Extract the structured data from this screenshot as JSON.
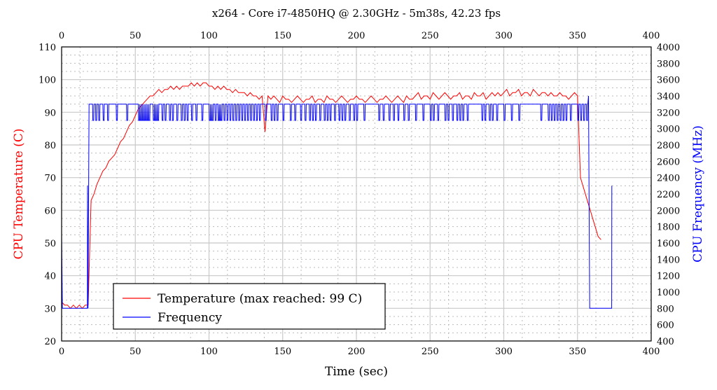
{
  "chart_data": {
    "type": "line",
    "title": "x264 - Core i7-4850HQ @ 2.30GHz - 5m38s, 42.23 fps",
    "xlabel": "Time (sec)",
    "ylabel_left": "CPU Temperature (C)",
    "ylabel_right": "CPU Frequency (MHz)",
    "xlim": [
      0,
      400
    ],
    "ylim_left": [
      20,
      110
    ],
    "ylim_right": [
      400,
      4000
    ],
    "x_ticks": [
      "0",
      "50",
      "100",
      "150",
      "200",
      "250",
      "300",
      "350",
      "400"
    ],
    "y_left_ticks": [
      "20",
      "30",
      "40",
      "50",
      "60",
      "70",
      "80",
      "90",
      "100",
      "110"
    ],
    "y_right_ticks": [
      "400",
      "600",
      "800",
      "1000",
      "1200",
      "1400",
      "1600",
      "1800",
      "2000",
      "2200",
      "2400",
      "2600",
      "2800",
      "3000",
      "3200",
      "3400",
      "3600",
      "3800",
      "4000"
    ],
    "grid": true,
    "legend_placement": "bottom-left",
    "colors": {
      "temperature": "#ff0000",
      "frequency": "#0000ff"
    },
    "series": [
      {
        "name": "Temperature (max reached: 99 C)",
        "axis": "left",
        "x_start": 0,
        "x_step": 2,
        "values": [
          32,
          31,
          31,
          30,
          31,
          30,
          31,
          30,
          31,
          31,
          63,
          65,
          68,
          70,
          72,
          73,
          75,
          76,
          77,
          79,
          81,
          82,
          84,
          86,
          87,
          89,
          91,
          92,
          93,
          94,
          95,
          95,
          96,
          97,
          96,
          97,
          97,
          98,
          97,
          98,
          97,
          98,
          98,
          98,
          99,
          98,
          99,
          98,
          99,
          99,
          98,
          98,
          97,
          98,
          97,
          98,
          97,
          97,
          96,
          97,
          96,
          96,
          96,
          95,
          96,
          95,
          95,
          94,
          95,
          84,
          95,
          94,
          95,
          94,
          93,
          95,
          94,
          94,
          93,
          94,
          95,
          94,
          93,
          94,
          94,
          95,
          93,
          94,
          94,
          93,
          95,
          94,
          94,
          93,
          94,
          95,
          94,
          93,
          94,
          94,
          95,
          94,
          94,
          93,
          94,
          95,
          94,
          93,
          94,
          94,
          95,
          94,
          93,
          94,
          95,
          94,
          93,
          95,
          94,
          94,
          95,
          96,
          94,
          95,
          95,
          94,
          96,
          95,
          94,
          95,
          96,
          95,
          94,
          95,
          95,
          96,
          94,
          95,
          95,
          94,
          96,
          95,
          95,
          96,
          94,
          95,
          96,
          95,
          96,
          95,
          96,
          97,
          95,
          96,
          96,
          97,
          95,
          96,
          96,
          95,
          97,
          96,
          95,
          96,
          96,
          95,
          96,
          95,
          95,
          96,
          95,
          95,
          94,
          95,
          96,
          95,
          70,
          67,
          64,
          61,
          58,
          55,
          52,
          51
        ],
        "max_label": 99
      },
      {
        "name": "Frequency",
        "axis": "right",
        "steps": [
          [
            0,
            1700
          ],
          [
            0.5,
            800
          ],
          [
            17.5,
            800
          ],
          [
            17.6,
            2300
          ],
          [
            17.9,
            800
          ],
          [
            18.6,
            3300
          ]
        ],
        "base_value": 3300,
        "dip_value": 3100,
        "dip_times": [
          21,
          23,
          25,
          28,
          31,
          37,
          44,
          52,
          53,
          54,
          55,
          56,
          57,
          58,
          59,
          62,
          63,
          64,
          65,
          68,
          70,
          73,
          75,
          78,
          81,
          83,
          85,
          88,
          91,
          95,
          100,
          101,
          102,
          104,
          106,
          107,
          108,
          110,
          112,
          114,
          116,
          118,
          120,
          122,
          124,
          126,
          128,
          130,
          132,
          134,
          138,
          142,
          144,
          146,
          150,
          155,
          158,
          162,
          165,
          168,
          170,
          172,
          175,
          178,
          180,
          182,
          185,
          188,
          190,
          192,
          195,
          198,
          200,
          205,
          215,
          218,
          222,
          225,
          228,
          232,
          235,
          240,
          245,
          250,
          252,
          255,
          260,
          262,
          265,
          268,
          270,
          272,
          275,
          285,
          287,
          290,
          292,
          295,
          300,
          305,
          310,
          325,
          330,
          332,
          334,
          336,
          338,
          340,
          342,
          345,
          350,
          352,
          354,
          356
        ],
        "end_steps": [
          [
            357.5,
            3400
          ],
          [
            358.3,
            800
          ],
          [
            373.2,
            800
          ],
          [
            373.3,
            2300
          ]
        ]
      }
    ]
  }
}
